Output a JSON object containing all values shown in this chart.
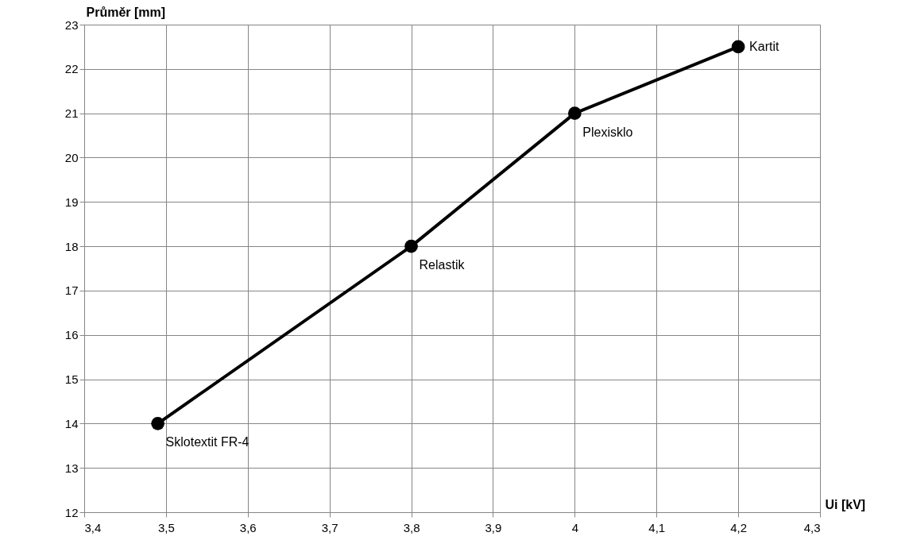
{
  "chart_data": {
    "type": "line",
    "xlabel": "Ui [kV]",
    "ylabel": "Průměr [mm]",
    "x": [
      3.49,
      3.8,
      4.0,
      4.2
    ],
    "series": [
      {
        "color": "#000000",
        "values": [
          14,
          18,
          21,
          22.5
        ]
      }
    ],
    "xlim": [
      3.4,
      4.3
    ],
    "ylim": [
      12,
      23
    ],
    "xticks": [
      {
        "value": 3.4,
        "label": "3,4"
      },
      {
        "value": 3.5,
        "label": "3,5"
      },
      {
        "value": 3.6,
        "label": "3,6"
      },
      {
        "value": 3.7,
        "label": "3,7"
      },
      {
        "value": 3.8,
        "label": "3,8"
      },
      {
        "value": 3.9,
        "label": "3,9"
      },
      4,
      {
        "value": 4.1,
        "label": "4,1"
      },
      {
        "value": 4.2,
        "label": "4,2"
      },
      {
        "value": 4.3,
        "label": "4,3"
      }
    ],
    "yticks": [
      12,
      13,
      14,
      15,
      16,
      17,
      18,
      19,
      20,
      21,
      22,
      23
    ],
    "grid": true,
    "marker": "circle",
    "line_style": "solid",
    "annotations": [
      {
        "text": "Sklotextit FR-4",
        "x": 3.49,
        "y": 14
      },
      {
        "text": "Relastik",
        "x": 3.8,
        "y": 18
      },
      {
        "text": "Plexisklo",
        "x": 4.0,
        "y": 21
      },
      {
        "text": "Kartit",
        "x": 4.2,
        "y": 22.5
      }
    ]
  }
}
